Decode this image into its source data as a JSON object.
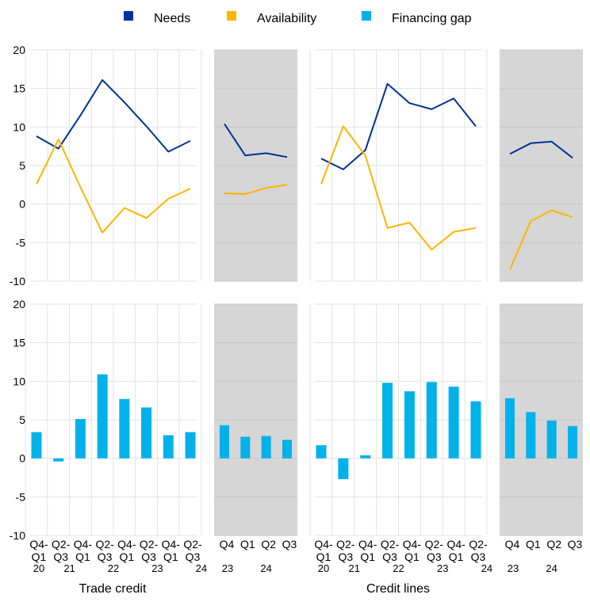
{
  "legend": [
    {
      "label": "Needs",
      "color": "#003299"
    },
    {
      "label": "Availability",
      "color": "#FFB400"
    },
    {
      "label": "Financing gap",
      "color": "#00B1EA"
    }
  ],
  "y_axis": {
    "min": -10,
    "max": 20,
    "ticks": [
      20,
      15,
      10,
      5,
      0,
      -5,
      -10
    ]
  },
  "groups": [
    {
      "label": "Trade credit"
    },
    {
      "label": "Credit lines"
    }
  ],
  "chart_data": [
    {
      "type": "line",
      "group": "Trade credit",
      "x": [
        "Q4-Q1 20",
        "Q2-Q3 21",
        "Q4-Q1 21",
        "Q2-Q3 22",
        "Q4-Q1 22",
        "Q2-Q3 23",
        "Q4-Q1 23",
        "Q2-Q3 24"
      ],
      "series": [
        {
          "name": "Needs",
          "values": [
            8.8,
            7.2,
            11.5,
            16.1,
            13.2,
            10.1,
            6.8,
            8.2
          ]
        },
        {
          "name": "Availability",
          "values": [
            2.6,
            8.4,
            2.2,
            -3.7,
            -0.5,
            -1.8,
            0.7,
            2.0
          ]
        }
      ],
      "ylim": [
        -10,
        20
      ]
    },
    {
      "type": "line",
      "group": "Trade credit",
      "x": [
        "Q4 23",
        "Q1 24",
        "Q2 24",
        "Q3 24"
      ],
      "series": [
        {
          "name": "Needs",
          "values": [
            10.4,
            6.3,
            6.6,
            6.1
          ]
        },
        {
          "name": "Availability",
          "values": [
            1.4,
            1.3,
            2.1,
            2.5
          ]
        }
      ],
      "ylim": [
        -10,
        20
      ],
      "shaded": true
    },
    {
      "type": "line",
      "group": "Credit lines",
      "x": [
        "Q4-Q1 20",
        "Q2-Q3 21",
        "Q4-Q1 21",
        "Q2-Q3 22",
        "Q4-Q1 22",
        "Q2-Q3 23",
        "Q4-Q1 23",
        "Q2-Q3 24"
      ],
      "series": [
        {
          "name": "Needs",
          "values": [
            5.9,
            4.5,
            7.0,
            15.6,
            13.1,
            12.3,
            13.7,
            10.1
          ]
        },
        {
          "name": "Availability",
          "values": [
            2.6,
            10.1,
            6.3,
            -3.1,
            -2.4,
            -5.9,
            -3.6,
            -3.1
          ]
        }
      ],
      "ylim": [
        -10,
        20
      ]
    },
    {
      "type": "line",
      "group": "Credit lines",
      "x": [
        "Q4 23",
        "Q1 24",
        "Q2 24",
        "Q3 24"
      ],
      "series": [
        {
          "name": "Needs",
          "values": [
            6.5,
            7.9,
            8.1,
            6.0
          ]
        },
        {
          "name": "Availability",
          "values": [
            -8.5,
            -2.2,
            -0.8,
            -1.7
          ]
        }
      ],
      "ylim": [
        -10,
        20
      ],
      "shaded": true
    },
    {
      "type": "bar",
      "group": "Trade credit",
      "categories": [
        "Q4-Q1 20",
        "Q2-Q3 21",
        "Q4-Q1 21",
        "Q2-Q3 22",
        "Q4-Q1 22",
        "Q2-Q3 23",
        "Q4-Q1 23",
        "Q2-Q3 24"
      ],
      "series": [
        {
          "name": "Financing gap",
          "values": [
            3.4,
            -0.4,
            5.1,
            10.9,
            7.7,
            6.6,
            3.0,
            3.4
          ]
        }
      ],
      "ylim": [
        -10,
        20
      ]
    },
    {
      "type": "bar",
      "group": "Trade credit",
      "categories": [
        "Q4 23",
        "Q1 24",
        "Q2 24",
        "Q3 24"
      ],
      "series": [
        {
          "name": "Financing gap",
          "values": [
            4.3,
            2.8,
            2.9,
            2.4
          ]
        }
      ],
      "ylim": [
        -10,
        20
      ],
      "shaded": true
    },
    {
      "type": "bar",
      "group": "Credit lines",
      "categories": [
        "Q4-Q1 20",
        "Q2-Q3 21",
        "Q4-Q1 21",
        "Q2-Q3 22",
        "Q4-Q1 22",
        "Q2-Q3 23",
        "Q4-Q1 23",
        "Q2-Q3 24"
      ],
      "series": [
        {
          "name": "Financing gap",
          "values": [
            1.7,
            -2.7,
            0.4,
            9.8,
            8.7,
            9.9,
            9.3,
            7.4
          ]
        }
      ],
      "ylim": [
        -10,
        20
      ]
    },
    {
      "type": "bar",
      "group": "Credit lines",
      "categories": [
        "Q4 23",
        "Q1 24",
        "Q2 24",
        "Q3 24"
      ],
      "series": [
        {
          "name": "Financing gap",
          "values": [
            7.8,
            6.0,
            4.9,
            4.2
          ]
        }
      ],
      "ylim": [
        -10,
        20
      ],
      "shaded": true
    }
  ],
  "x_axis": {
    "main_ticks": [
      {
        "top": "Q4-",
        "bottom": "Q1"
      },
      {
        "top": "Q2-",
        "bottom": "Q3"
      },
      {
        "top": "Q4-",
        "bottom": "Q1"
      },
      {
        "top": "Q2-",
        "bottom": "Q3"
      },
      {
        "top": "Q4-",
        "bottom": "Q1"
      },
      {
        "top": "Q2-",
        "bottom": "Q3"
      },
      {
        "top": "Q4-",
        "bottom": "Q1"
      },
      {
        "top": "Q2-",
        "bottom": "Q3"
      }
    ],
    "main_years": [
      "20",
      "21",
      "22",
      "23",
      "24"
    ],
    "recent_ticks": [
      "Q4",
      "Q1",
      "Q2",
      "Q3"
    ],
    "recent_years": [
      "23",
      "24"
    ]
  }
}
